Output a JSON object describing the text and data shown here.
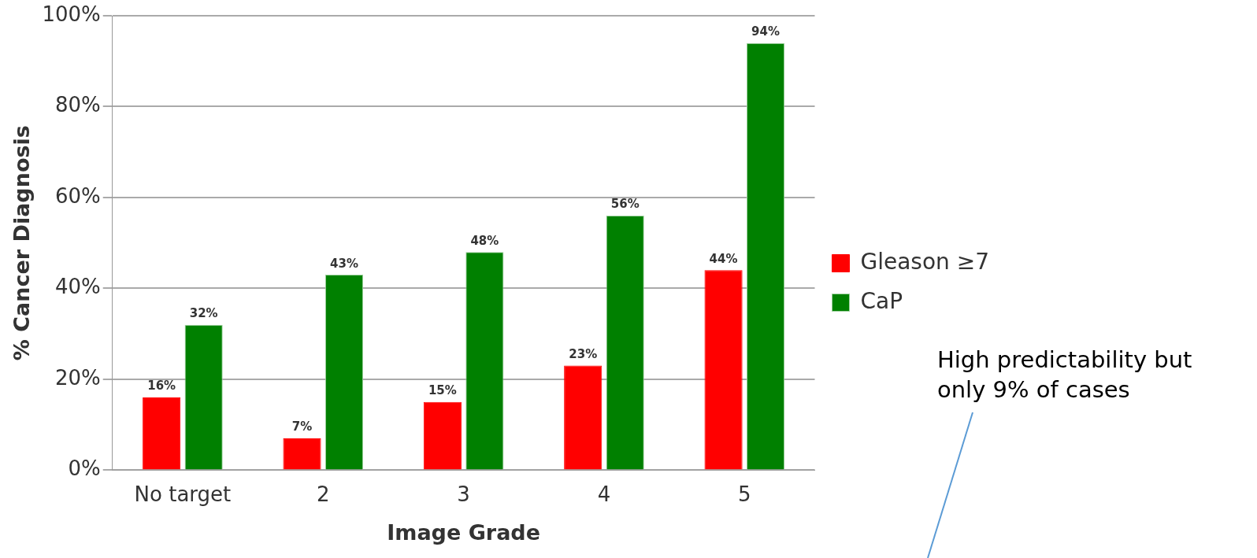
{
  "chart_data": {
    "type": "bar",
    "xlabel": "Image Grade",
    "ylabel": "% Cancer Diagnosis",
    "categories": [
      "No target",
      "2",
      "3",
      "4",
      "5"
    ],
    "series": [
      {
        "name": "Gleason ≥7",
        "color": "#ff0000",
        "values": [
          16,
          7,
          15,
          23,
          44
        ],
        "value_labels": [
          "16%",
          "7%",
          "15%",
          "23%",
          "44%"
        ]
      },
      {
        "name": "CaP",
        "color": "#008000",
        "values": [
          32,
          43,
          48,
          56,
          94
        ],
        "value_labels": [
          "32%",
          "43%",
          "48%",
          "56%",
          "94%"
        ]
      }
    ],
    "ylim": [
      0,
      100
    ],
    "yticks": [
      {
        "value": 0,
        "label": "0%"
      },
      {
        "value": 20,
        "label": "20%"
      },
      {
        "value": 40,
        "label": "40%"
      },
      {
        "value": 60,
        "label": "60%"
      },
      {
        "value": 80,
        "label": "80%"
      },
      {
        "value": 100,
        "label": "100%"
      }
    ],
    "grid": "y",
    "legend": "right",
    "annotations": [
      "High predictability but only 9% of cases"
    ]
  }
}
